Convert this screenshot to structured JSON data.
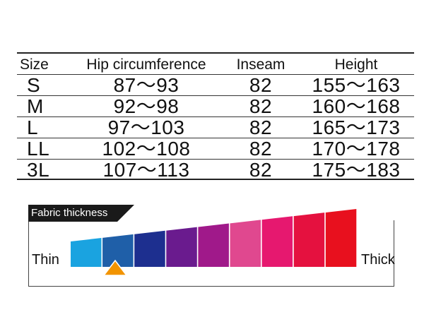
{
  "size_table": {
    "headers": [
      "Size",
      "Hip circumference",
      "Inseam",
      "Height"
    ],
    "rows": [
      [
        "S",
        "87～93",
        "82",
        "155～163"
      ],
      [
        "M",
        "92～98",
        "82",
        "160～168"
      ],
      [
        "L",
        "97～103",
        "82",
        "165～173"
      ],
      [
        "LL",
        "102～108",
        "82",
        "170～178"
      ],
      [
        "3L",
        "107～113",
        "82",
        "175～183"
      ]
    ]
  },
  "thickness": {
    "title": "Fabric thickness",
    "thin_label": "Thin",
    "thick_label": "Thick",
    "levels": 9,
    "selected_level": 2,
    "colors": [
      "#1aa3e0",
      "#1f5fa8",
      "#1d2f8f",
      "#6a1b8e",
      "#a0198a",
      "#e0488f",
      "#e6186f",
      "#e5113f",
      "#e8101e"
    ],
    "marker_color": "#f29400"
  }
}
